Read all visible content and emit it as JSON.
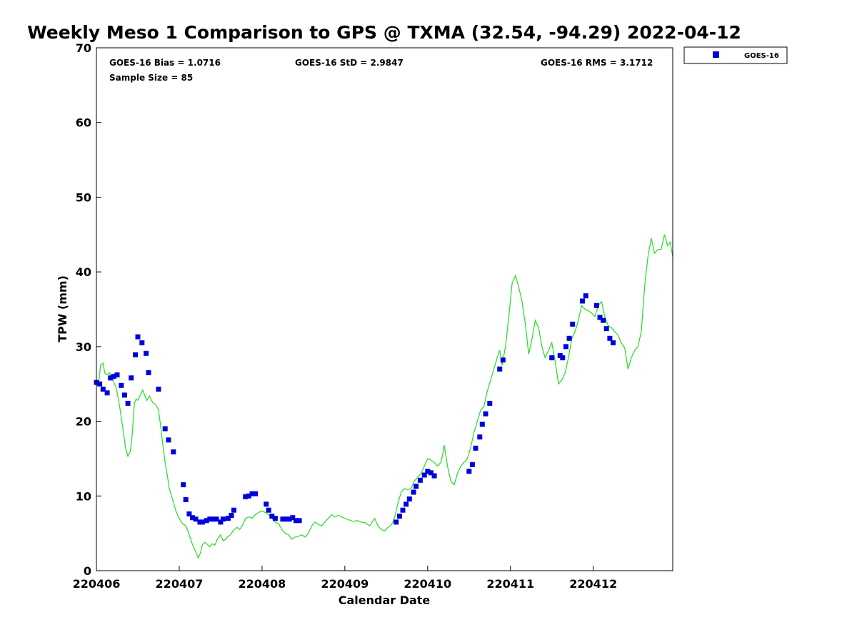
{
  "chart_data": {
    "type": "scatter",
    "title": "Weekly Meso 1 Comparison to GPS @ TXMA (32.54, -94.29) 2022-04-12",
    "xlabel": "Calendar Date",
    "ylabel": "TPW (mm)",
    "xlim": [
      0,
      6.96
    ],
    "ylim": [
      0,
      70
    ],
    "xticks": [
      0,
      1,
      2,
      3,
      4,
      5,
      6
    ],
    "xtick_labels": [
      "220406",
      "220407",
      "220408",
      "220409",
      "220410",
      "220411",
      "220412"
    ],
    "yticks": [
      0,
      10,
      20,
      30,
      40,
      50,
      60,
      70
    ],
    "ytick_labels": [
      "0",
      "10",
      "20",
      "30",
      "40",
      "50",
      "60",
      "70"
    ],
    "grid": false,
    "legend": {
      "position": "top-right",
      "entries": [
        "GOES-16"
      ]
    },
    "colors": {
      "goes": "#0000dd",
      "gps": "#22dd22"
    },
    "stats": {
      "bias": "GOES-16 Bias = 1.0716",
      "std": "GOES-16 StD = 2.9847",
      "rms": "GOES-16 RMS = 3.1712",
      "sample_size": "Sample Size = 85"
    },
    "series": [
      {
        "name": "GOES-16",
        "kind": "scatter",
        "x": [
          0.0,
          0.04,
          0.08,
          0.13,
          0.17,
          0.21,
          0.25,
          0.3,
          0.34,
          0.38,
          0.42,
          0.47,
          0.5,
          0.55,
          0.6,
          0.63,
          0.75,
          0.83,
          0.87,
          0.93,
          1.05,
          1.08,
          1.12,
          1.16,
          1.2,
          1.25,
          1.28,
          1.33,
          1.37,
          1.41,
          1.45,
          1.5,
          1.53,
          1.59,
          1.63,
          1.66,
          1.8,
          1.84,
          1.88,
          1.92,
          2.05,
          2.08,
          2.12,
          2.16,
          2.25,
          2.29,
          2.33,
          2.37,
          2.41,
          2.45,
          3.62,
          3.66,
          3.7,
          3.74,
          3.78,
          3.83,
          3.86,
          3.91,
          3.96,
          4.0,
          4.04,
          4.08,
          4.5,
          4.54,
          4.58,
          4.63,
          4.66,
          4.7,
          4.75,
          4.87,
          4.91,
          5.5,
          5.6,
          5.63,
          5.67,
          5.71,
          5.75,
          5.87,
          5.91,
          6.04,
          6.08,
          6.12,
          6.16,
          6.2,
          6.24
        ],
        "y": [
          25.2,
          25.0,
          24.3,
          23.8,
          25.8,
          26.0,
          26.2,
          24.8,
          23.5,
          22.4,
          25.8,
          28.9,
          31.3,
          30.5,
          29.1,
          26.5,
          24.3,
          19.0,
          17.5,
          15.9,
          11.5,
          9.5,
          7.6,
          7.1,
          6.9,
          6.5,
          6.5,
          6.7,
          6.9,
          6.9,
          6.9,
          6.5,
          6.9,
          7.0,
          7.4,
          8.1,
          9.9,
          10.0,
          10.3,
          10.3,
          8.9,
          8.1,
          7.3,
          7.0,
          6.9,
          6.9,
          6.9,
          7.1,
          6.7,
          6.7,
          6.5,
          7.3,
          8.1,
          8.9,
          9.6,
          10.5,
          11.3,
          12.1,
          12.8,
          13.3,
          13.1,
          12.7,
          13.3,
          14.2,
          16.4,
          17.9,
          19.6,
          21.0,
          22.4,
          27.0,
          28.2,
          28.5,
          28.8,
          28.5,
          30.0,
          31.1,
          33.0,
          36.1,
          36.8,
          35.5,
          33.9,
          33.5,
          32.4,
          31.1,
          30.5
        ]
      },
      {
        "name": "GPS",
        "kind": "line",
        "x": [
          0.0,
          0.03,
          0.05,
          0.08,
          0.1,
          0.13,
          0.16,
          0.2,
          0.24,
          0.28,
          0.32,
          0.35,
          0.38,
          0.41,
          0.43,
          0.46,
          0.48,
          0.5,
          0.53,
          0.56,
          0.58,
          0.61,
          0.64,
          0.68,
          0.72,
          0.75,
          0.78,
          0.8,
          0.83,
          0.86,
          0.88,
          0.92,
          0.96,
          1.0,
          1.04,
          1.08,
          1.1,
          1.13,
          1.16,
          1.2,
          1.23,
          1.26,
          1.28,
          1.31,
          1.34,
          1.37,
          1.4,
          1.43,
          1.46,
          1.5,
          1.53,
          1.56,
          1.59,
          1.62,
          1.66,
          1.7,
          1.73,
          1.77,
          1.8,
          1.84,
          1.88,
          1.92,
          1.96,
          2.0,
          2.04,
          2.08,
          2.12,
          2.16,
          2.2,
          2.24,
          2.28,
          2.32,
          2.36,
          2.4,
          2.44,
          2.48,
          2.52,
          2.56,
          2.6,
          2.64,
          2.68,
          2.72,
          2.76,
          2.8,
          2.84,
          2.88,
          2.92,
          2.96,
          3.0,
          3.05,
          3.1,
          3.15,
          3.2,
          3.25,
          3.3,
          3.33,
          3.36,
          3.4,
          3.44,
          3.48,
          3.52,
          3.55,
          3.58,
          3.61,
          3.64,
          3.68,
          3.72,
          3.76,
          3.8,
          3.84,
          3.88,
          3.92,
          3.96,
          4.0,
          4.04,
          4.08,
          4.12,
          4.16,
          4.18,
          4.2,
          4.24,
          4.28,
          4.32,
          4.36,
          4.4,
          4.44,
          4.48,
          4.52,
          4.56,
          4.6,
          4.64,
          4.68,
          4.72,
          4.76,
          4.8,
          4.84,
          4.87,
          4.9,
          4.94,
          4.98,
          5.02,
          5.06,
          5.1,
          5.14,
          5.18,
          5.22,
          5.26,
          5.3,
          5.34,
          5.38,
          5.42,
          5.46,
          5.5,
          5.54,
          5.58,
          5.62,
          5.66,
          5.7,
          5.74,
          5.78,
          5.82,
          5.86,
          5.9,
          5.94,
          5.98,
          6.02,
          6.06,
          6.1,
          6.14,
          6.18,
          6.22,
          6.26,
          6.3,
          6.34,
          6.38,
          6.42,
          6.46,
          6.5,
          6.54,
          6.58,
          6.62,
          6.66,
          6.7,
          6.74,
          6.78,
          6.82,
          6.86,
          6.9,
          6.93,
          6.96
        ],
        "y": [
          25.5,
          25.3,
          27.5,
          27.8,
          26.5,
          26.2,
          26.5,
          25.5,
          24.5,
          22.0,
          19.0,
          16.5,
          15.3,
          16.0,
          18.0,
          22.5,
          23.0,
          22.8,
          23.5,
          24.2,
          23.5,
          22.8,
          23.4,
          22.5,
          22.2,
          21.5,
          19.0,
          17.0,
          14.5,
          12.5,
          11.0,
          9.5,
          8.0,
          7.0,
          6.3,
          6.0,
          5.5,
          4.5,
          3.5,
          2.5,
          1.7,
          2.5,
          3.5,
          3.8,
          3.5,
          3.2,
          3.6,
          3.4,
          4.2,
          4.8,
          4.0,
          4.2,
          4.6,
          4.8,
          5.5,
          5.8,
          5.5,
          6.2,
          7.0,
          7.2,
          7.0,
          7.5,
          7.8,
          8.0,
          7.8,
          7.5,
          7.0,
          6.5,
          6.3,
          5.5,
          5.0,
          4.8,
          4.2,
          4.5,
          4.6,
          4.8,
          4.5,
          5.0,
          6.0,
          6.5,
          6.2,
          6.0,
          6.5,
          7.0,
          7.5,
          7.2,
          7.4,
          7.2,
          7.0,
          6.8,
          6.6,
          6.7,
          6.5,
          6.4,
          6.0,
          6.5,
          7.0,
          6.0,
          5.5,
          5.3,
          5.8,
          6.0,
          6.5,
          7.5,
          9.0,
          10.5,
          11.0,
          10.8,
          11.0,
          12.0,
          12.5,
          13.0,
          14.0,
          15.0,
          14.8,
          14.5,
          14.0,
          14.5,
          15.5,
          16.8,
          14.0,
          12.0,
          11.5,
          13.0,
          14.0,
          14.5,
          15.0,
          16.5,
          18.5,
          20.0,
          21.5,
          22.0,
          24.0,
          25.5,
          27.0,
          28.5,
          29.5,
          27.5,
          30.0,
          34.0,
          38.5,
          39.5,
          38.0,
          36.0,
          33.0,
          29.0,
          31.0,
          33.5,
          32.5,
          30.0,
          28.5,
          29.5,
          30.5,
          28.0,
          25.0,
          25.5,
          26.5,
          28.5,
          31.0,
          32.0,
          33.5,
          35.5,
          35.0,
          34.8,
          34.5,
          34.0,
          35.5,
          36.0,
          34.0,
          32.8,
          32.5,
          32.0,
          31.5,
          30.5,
          29.8,
          27.0,
          28.5,
          29.5,
          30.0,
          32.0,
          38.0,
          42.0,
          44.5,
          42.5,
          43.0,
          43.0,
          45.0,
          43.5,
          44.0,
          42.0
        ]
      }
    ]
  }
}
